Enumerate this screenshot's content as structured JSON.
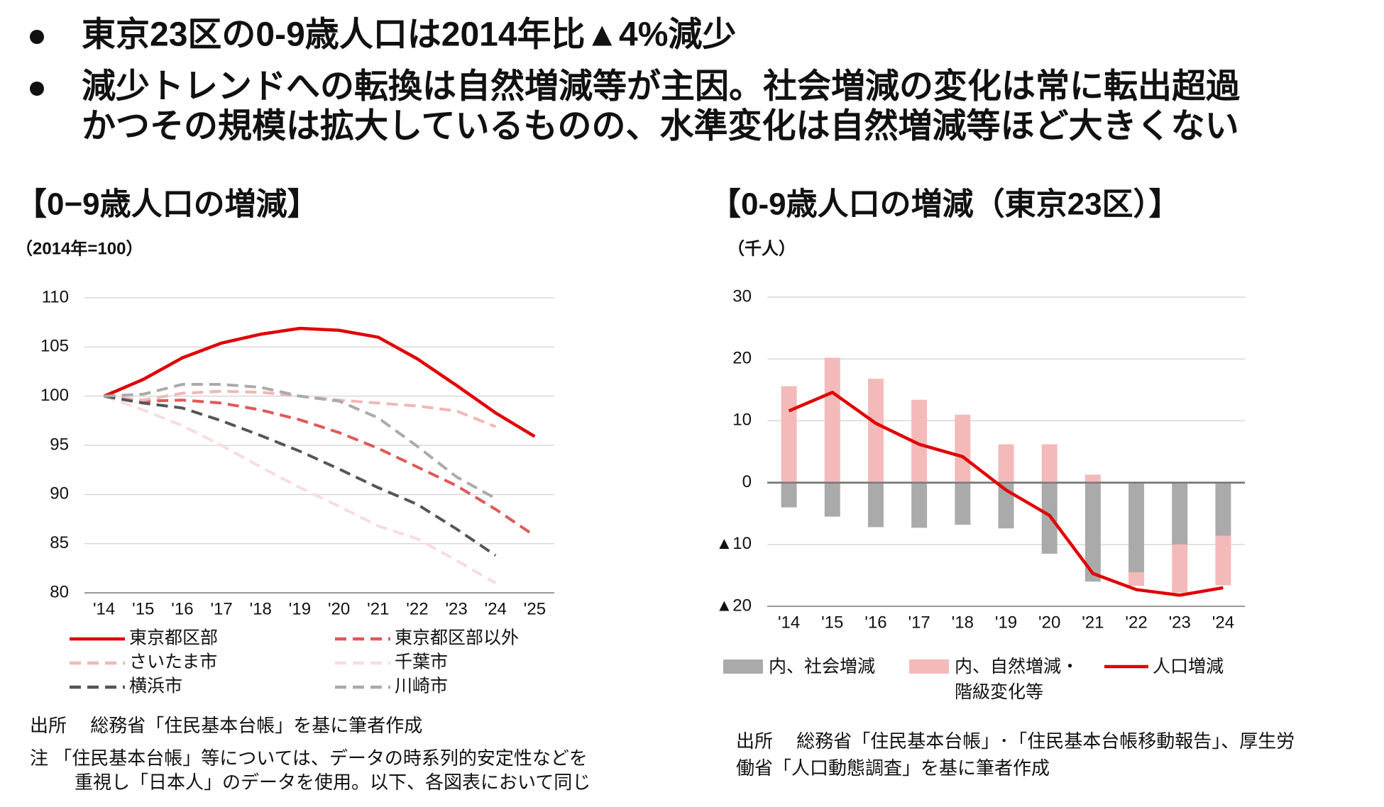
{
  "header": {
    "bullets": [
      {
        "lines": [
          "東京23区の0-9歳人口は2014年比▲4%減少"
        ]
      },
      {
        "lines": [
          "減少トレンドへの転換は自然増減等が主因。社会増減の変化は常に転出超過",
          "かつその規模は拡大しているものの、水準変化は自然増減等ほど大きくない"
        ]
      }
    ]
  },
  "chart_data": [
    {
      "type": "line",
      "title": "【0−9歳人口の増減】",
      "y_label": "（2014年=100）",
      "categories": [
        "'14",
        "'15",
        "'16",
        "'17",
        "'18",
        "'19",
        "'20",
        "'21",
        "'22",
        "'23",
        "'24",
        "'25"
      ],
      "ylim": [
        80,
        110
      ],
      "yticks": [
        80,
        85,
        90,
        95,
        100,
        105,
        110
      ],
      "grid": true,
      "series": [
        {
          "name": "東京都区部",
          "color": "#e00000",
          "dash": false,
          "values": [
            100,
            101.7,
            103.9,
            105.4,
            106.3,
            106.9,
            106.7,
            106.0,
            103.8,
            101.1,
            98.3,
            95.9
          ]
        },
        {
          "name": "東京都区部以外",
          "color": "#e05858",
          "dash": true,
          "values": [
            100,
            99.5,
            99.6,
            99.3,
            98.6,
            97.6,
            96.3,
            94.7,
            92.8,
            90.9,
            88.5,
            85.8
          ]
        },
        {
          "name": "さいたま市",
          "color": "#f2b6b6",
          "dash": true,
          "values": [
            100,
            99.6,
            100.3,
            100.5,
            100.4,
            100.0,
            99.6,
            99.3,
            99.0,
            98.5,
            96.9,
            null
          ]
        },
        {
          "name": "千葉市",
          "color": "#f8dcdc",
          "dash": true,
          "values": [
            100,
            98.6,
            97.0,
            95.0,
            92.8,
            90.7,
            88.8,
            86.8,
            85.5,
            83.3,
            81.0,
            null
          ]
        },
        {
          "name": "横浜市",
          "color": "#555555",
          "dash": true,
          "values": [
            100,
            99.3,
            98.8,
            97.5,
            96.0,
            94.4,
            92.6,
            90.7,
            89.0,
            86.5,
            83.8,
            null
          ]
        },
        {
          "name": "川崎市",
          "color": "#aaaaaa",
          "dash": true,
          "values": [
            100,
            100.2,
            101.2,
            101.2,
            100.9,
            100.0,
            99.5,
            97.8,
            94.9,
            91.8,
            89.6,
            null
          ]
        }
      ],
      "notes": [
        "出所　 総務省「住民基本台帳」を基に筆者作成",
        "注 「住民基本台帳」等については、データの時系列的安定性などを",
        "重視し「日本人」のデータを使用。以下、各図表において同じ"
      ]
    },
    {
      "type": "combo",
      "title": "【0-9歳人口の増減（東京23区）】",
      "y_label": "（千人）",
      "categories": [
        "'14",
        "'15",
        "'16",
        "'17",
        "'18",
        "'19",
        "'20",
        "'21",
        "'22",
        "'23",
        "'24"
      ],
      "ylim": [
        -20,
        30
      ],
      "yticks": [
        {
          "value": -20,
          "label": "▲20"
        },
        {
          "value": -10,
          "label": "▲10"
        },
        0,
        10,
        20,
        30
      ],
      "grid": true,
      "series": [
        {
          "name": "内、社会増減",
          "type": "bar",
          "color": "#aaaaaa",
          "values": [
            -4,
            -5.5,
            -7.2,
            -7.3,
            -6.8,
            -7.4,
            -11.5,
            -16,
            -14.5,
            -10,
            -8.6
          ]
        },
        {
          "name": "内、自然増減・階級変化等",
          "type": "bar",
          "color": "#f4baba",
          "values": [
            15.6,
            20.2,
            16.8,
            13.4,
            11,
            6.2,
            6.2,
            1.3,
            -2.2,
            -7.8,
            -8
          ]
        },
        {
          "name": "人口増減",
          "type": "line",
          "color": "#e00000",
          "values": [
            11.6,
            14.6,
            9.6,
            6.2,
            4.2,
            -1.2,
            -5.3,
            -14.7,
            -17.3,
            -18.2,
            -17
          ]
        }
      ],
      "notes": [
        "出所　 総務省「住民基本台帳」･「住民基本台帳移動報告」、厚生労",
        "働省「人口動態調査」を基に筆者作成"
      ]
    }
  ]
}
